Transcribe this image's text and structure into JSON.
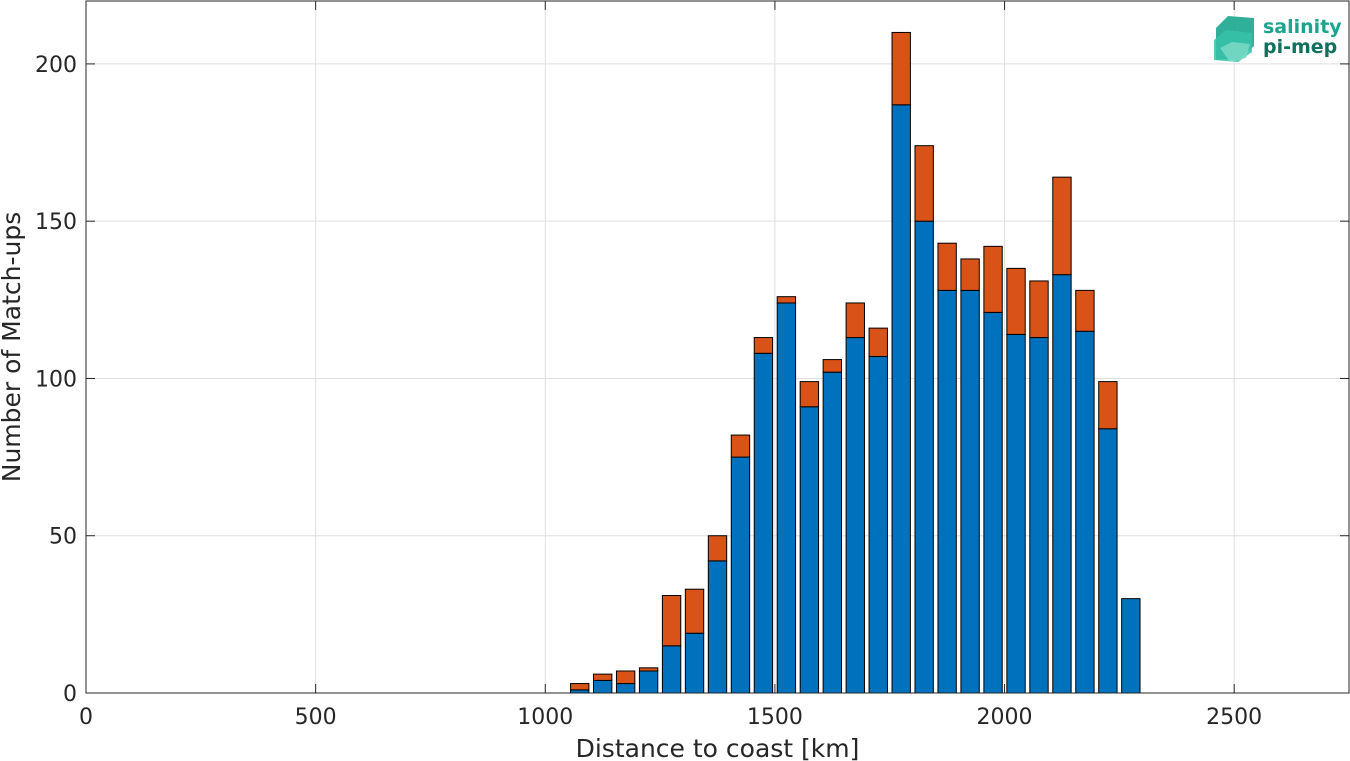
{
  "chart_data": {
    "type": "bar",
    "stacked": true,
    "title": "",
    "xlabel": "Distance to coast [km]",
    "ylabel": "Number of Match-ups",
    "xlim": [
      0,
      2750
    ],
    "ylim": [
      0,
      220
    ],
    "xticks": [
      0,
      500,
      1000,
      1500,
      2000,
      2500
    ],
    "yticks": [
      0,
      50,
      100,
      150,
      200
    ],
    "bin_width": 50,
    "grid": true,
    "x": [
      1075,
      1125,
      1175,
      1225,
      1275,
      1325,
      1375,
      1425,
      1475,
      1525,
      1575,
      1625,
      1675,
      1725,
      1775,
      1825,
      1875,
      1925,
      1975,
      2025,
      2075,
      2125,
      2175,
      2225,
      2275
    ],
    "series": [
      {
        "color": "#0072bd",
        "values": [
          1,
          4,
          3,
          7,
          15,
          19,
          42,
          75,
          108,
          124,
          91,
          102,
          113,
          107,
          187,
          150,
          128,
          128,
          121,
          114,
          113,
          133,
          115,
          84,
          30
        ]
      },
      {
        "color": "#d95319",
        "values": [
          2,
          2,
          4,
          1,
          16,
          14,
          8,
          7,
          5,
          2,
          8,
          4,
          11,
          9,
          23,
          24,
          15,
          10,
          21,
          21,
          18,
          31,
          13,
          15,
          0
        ]
      }
    ]
  },
  "logo": {
    "line1": "salinity",
    "line2": "pi-mep",
    "color_primary": "#1aa68e",
    "color_secondary": "#10705f"
  }
}
